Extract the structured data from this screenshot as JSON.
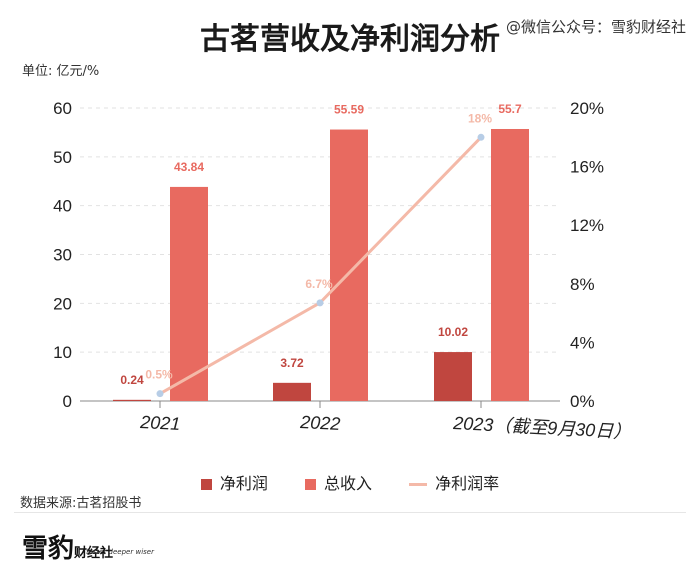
{
  "title": "古茗营收及净利润分析",
  "watermark_source": "@微信公众号：雪豹财经社",
  "unit_label": "单位: 亿元/%",
  "legend": {
    "net_profit": "净利润",
    "revenue": "总收入",
    "margin": "净利润率"
  },
  "data_source": "数据来源:古茗招股书",
  "logo": {
    "main": "雪豹",
    "sub": "财经社",
    "slogan": "faster deeper wiser"
  },
  "colors": {
    "net_profit": "#c0463f",
    "revenue": "#e86a60",
    "margin": "#f4b9a8",
    "margin_point": "#b7cde6"
  },
  "chart_data": {
    "type": "bar",
    "title": "古茗营收及净利润分析",
    "categories": [
      "2021",
      "2022",
      "2023（截至9月30日）"
    ],
    "series": [
      {
        "name": "净利润",
        "type": "bar",
        "values": [
          0.24,
          3.72,
          10.02
        ],
        "labels": [
          "0.24",
          "3.72",
          "10.02"
        ]
      },
      {
        "name": "总收入",
        "type": "bar",
        "values": [
          43.84,
          55.59,
          55.7
        ],
        "labels": [
          "43.84",
          "55.59",
          "55.7"
        ]
      },
      {
        "name": "净利润率",
        "type": "line",
        "axis": "right",
        "values": [
          0.5,
          6.7,
          18
        ],
        "labels": [
          "0.5%",
          "6.7%",
          "18%"
        ]
      }
    ],
    "ylim_left": [
      0,
      60
    ],
    "yticks_left": [
      "0",
      "10",
      "20",
      "30",
      "40",
      "50",
      "60"
    ],
    "ylim_right": [
      0,
      20
    ],
    "yticks_right": [
      "0%",
      "4%",
      "8%",
      "12%",
      "16%",
      "20%"
    ],
    "grid": true,
    "legend_position": "bottom"
  }
}
